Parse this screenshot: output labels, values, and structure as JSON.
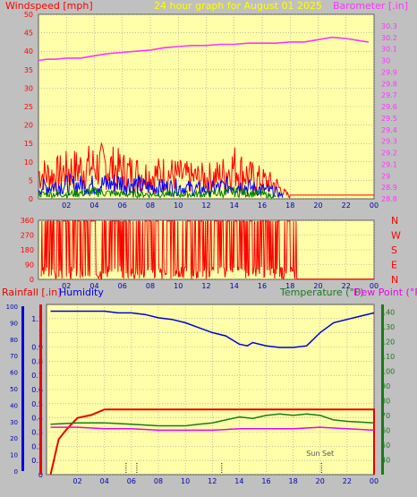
{
  "header": {
    "windspeed_label": "Windspeed [mph]",
    "title": "24 hour graph for  August 01 2025",
    "barometer_label": "Barometer [.in]"
  },
  "colors": {
    "background": "#c0c0c0",
    "plot_bg": "#ffffaa",
    "grid": "#9a9a9a",
    "wind_gust": "#ff0000",
    "wind_avg": "#0000ff",
    "wind_low": "#008000",
    "barometer": "#ff33ff",
    "direction": "#ff0000",
    "rainfall": "#ee0000",
    "humidity": "#0000dd",
    "temperature": "#1a7a1a",
    "dewpoint": "#ee00ee"
  },
  "chart_data": [
    {
      "type": "line",
      "x_ticks": [
        "02",
        "04",
        "06",
        "08",
        "10",
        "12",
        "14",
        "16",
        "18",
        "20",
        "22",
        "00"
      ],
      "xlim": [
        0,
        24
      ],
      "y_left": {
        "label": "Windspeed [mph]",
        "ylim": [
          0,
          50
        ],
        "ticks": [
          "0",
          "5",
          "10",
          "15",
          "20",
          "25",
          "30",
          "35",
          "40",
          "45",
          "50"
        ]
      },
      "y_right": {
        "label": "Barometer [.in]",
        "ylim": [
          28.8,
          30.4
        ],
        "ticks": [
          "28.8",
          "28.9",
          "29",
          "29.1",
          "29.2",
          "29.3",
          "29.4",
          "29.5",
          "29.6",
          "29.7",
          "29.8",
          "29.9",
          "30",
          "30.1",
          "30.2",
          "30.3"
        ]
      },
      "grid": true,
      "series": [
        {
          "name": "Barometer [.in]",
          "axis": "right",
          "color": "#ff33ff",
          "x": [
            0,
            0.6,
            1.2,
            2,
            3,
            4,
            5,
            6,
            7,
            8,
            9,
            10,
            11,
            12,
            13,
            14,
            15,
            16,
            17,
            18,
            19,
            20,
            21,
            22,
            23,
            23.6
          ],
          "y": [
            30.0,
            30.01,
            30.01,
            30.02,
            30.02,
            30.04,
            30.06,
            30.07,
            30.08,
            30.09,
            30.11,
            30.12,
            30.13,
            30.13,
            30.14,
            30.14,
            30.15,
            30.15,
            30.15,
            30.16,
            30.16,
            30.18,
            30.2,
            30.19,
            30.17,
            30.16
          ]
        },
        {
          "axis": "left",
          "color": "#ff0000",
          "x": [
            0,
            1,
            2,
            3,
            4,
            5,
            6,
            7,
            8,
            9,
            10,
            11,
            12,
            13,
            14,
            15,
            16,
            17,
            17.5,
            18,
            24
          ],
          "y": [
            11,
            10,
            12,
            13,
            14,
            14,
            12,
            11,
            10,
            11,
            10,
            9,
            9,
            10,
            14,
            10,
            8,
            6,
            3,
            1,
            1
          ]
        },
        {
          "axis": "left",
          "color": "#0000ff",
          "x": [
            0,
            2,
            4,
            6,
            8,
            10,
            12,
            14,
            16,
            17,
            17.5
          ],
          "y": [
            5,
            6,
            6,
            7,
            5,
            5,
            4,
            6,
            4,
            3,
            1
          ]
        },
        {
          "axis": "left",
          "color": "#008000",
          "x": [
            0,
            2,
            4,
            6,
            8,
            10,
            12,
            14,
            16,
            17
          ],
          "y": [
            2,
            2,
            3,
            2,
            2,
            2,
            2,
            3,
            2,
            1
          ]
        }
      ]
    },
    {
      "type": "line",
      "x_ticks": [
        "02",
        "04",
        "06",
        "08",
        "10",
        "12",
        "14",
        "16",
        "18",
        "20",
        "22",
        "00"
      ],
      "xlim": [
        0,
        24
      ],
      "y_left": {
        "ylim": [
          0,
          360
        ],
        "ticks": [
          "0",
          "90",
          "180",
          "270",
          "360"
        ]
      },
      "y_right_labels": [
        "N",
        "W",
        "S",
        "E",
        "N"
      ],
      "grid": true,
      "series": [
        {
          "color": "#ff0000",
          "x_end": 18.5,
          "values_range": [
            0,
            360
          ]
        }
      ]
    },
    {
      "type": "line",
      "x_ticks": [
        "02",
        "04",
        "06",
        "08",
        "10",
        "12",
        "14",
        "16",
        "18",
        "20",
        "22",
        "00"
      ],
      "xlim": [
        -0.3,
        24
      ],
      "y_left": {
        "label": "Rainfall [.in]",
        "ylim": [
          0,
          1.2
        ],
        "ticks": [
          "0",
          "0.1",
          "0.2",
          "0.3",
          "0.4",
          "0.5",
          "0.6",
          "0.7",
          "0.8",
          "0.9",
          "1",
          "1.1"
        ]
      },
      "y_right": {
        "label": "Temperature (°F)  Dew Point (°F)",
        "ylim": [
          30,
          145
        ],
        "ticks": [
          "40",
          "50",
          "60",
          "70",
          "80",
          "90",
          "100",
          "110",
          "120",
          "130",
          "140"
        ]
      },
      "y_outer": {
        "ylim": [
          0,
          100
        ],
        "ticks": [
          "0",
          "10",
          "20",
          "30",
          "40",
          "50",
          "60",
          "70",
          "80",
          "90",
          "100"
        ]
      },
      "annotations": [
        "Sun Set"
      ],
      "grid": true,
      "series": [
        {
          "name": "Humidity",
          "axis": "outer",
          "color": "#0000dd",
          "x": [
            0,
            2,
            4,
            5,
            6,
            7,
            8,
            9,
            10,
            11,
            12,
            13,
            14,
            14.6,
            15,
            16,
            17,
            18,
            19,
            20,
            21,
            22,
            23,
            24
          ],
          "y": [
            97,
            97,
            97,
            96,
            96,
            95,
            93,
            92,
            90,
            87,
            84,
            82,
            77,
            76,
            78,
            76,
            75,
            75,
            76,
            84,
            90,
            92,
            94,
            96
          ]
        },
        {
          "name": "Rainfall [.in]",
          "axis": "left",
          "color": "#ee0000",
          "x": [
            0,
            0.6,
            1.2,
            2,
            3,
            4,
            24,
            24
          ],
          "y": [
            0,
            0.25,
            0.32,
            0.4,
            0.42,
            0.46,
            0.46,
            0.0
          ]
        },
        {
          "name": "Temperature (°F)",
          "axis": "right",
          "color": "#1a7a1a",
          "x": [
            0,
            2,
            4,
            6,
            8,
            10,
            11,
            12,
            13,
            14,
            15,
            16,
            17,
            18,
            19,
            20,
            21,
            22,
            24
          ],
          "y": [
            64,
            65,
            65,
            64,
            63,
            63,
            64,
            65,
            67,
            69,
            68,
            70,
            71,
            70,
            71,
            70,
            67,
            66,
            65
          ]
        },
        {
          "name": "Dew Point (°F)",
          "axis": "right",
          "color": "#ee00ee",
          "x": [
            0,
            2,
            4,
            6,
            8,
            10,
            12,
            14,
            16,
            18,
            20,
            22,
            24
          ],
          "y": [
            62,
            62,
            61,
            61,
            60,
            60,
            60,
            61,
            61,
            61,
            62,
            61,
            60
          ]
        }
      ]
    }
  ]
}
